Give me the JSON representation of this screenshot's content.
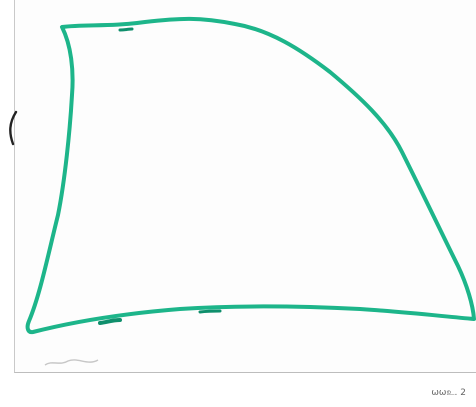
{
  "caption": "ωωஉ. 2",
  "colors": {
    "outline": "#1db58a",
    "paper": "#fdfdfd",
    "mark": "#222222"
  },
  "icons": {
    "outline_shape": "hand-drawn-quadrilateral",
    "margin_mark": "bracket-mark"
  }
}
